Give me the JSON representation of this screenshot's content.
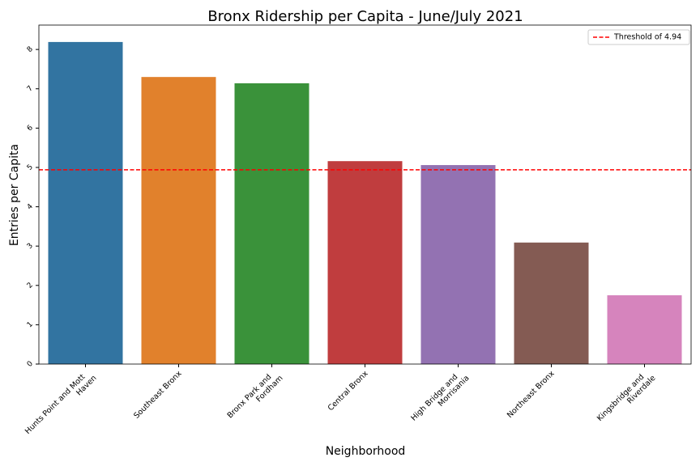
{
  "chart_data": {
    "type": "bar",
    "title": "Bronx Ridership per Capita - June/July 2021",
    "xlabel": "Neighborhood",
    "ylabel": "Entries per Capita",
    "categories": [
      "Hunts Point and Mott\nHaven",
      "Southeast Bronx",
      "Bronx Park and\nFordham",
      "Central Bronx",
      "High Bridge and\nMorrisania",
      "Northeast Bronx",
      "Kingsbridge and\nRiverdale"
    ],
    "values": [
      8.19,
      7.3,
      7.14,
      5.16,
      5.06,
      3.09,
      1.75
    ],
    "colors": [
      "#3274a1",
      "#e1812c",
      "#3a923a",
      "#c03d3e",
      "#9372b2",
      "#845b53",
      "#d684bd"
    ],
    "ylim": [
      0,
      8.62
    ],
    "yticks": [
      0,
      1,
      2,
      3,
      4,
      5,
      6,
      7,
      8
    ],
    "hline": {
      "value": 4.94,
      "label": "Threshold of 4.94",
      "color": "#ff0000"
    },
    "legend": "upper right"
  }
}
